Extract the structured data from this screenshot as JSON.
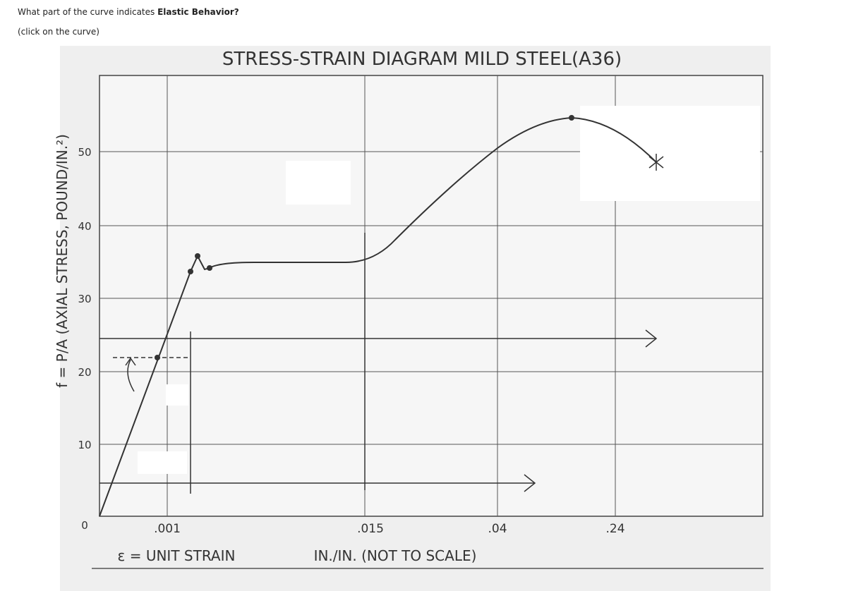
{
  "question": {
    "text": "What part of the curve indicates ",
    "emphasis": "Elastic Behavior?"
  },
  "instruction": "(click on the curve)",
  "diagram": {
    "title": "STRESS-STRAIN DIAGRAM  MILD STEEL(A36)",
    "y_label": "f = P/A (AXIAL STRESS, POUND/IN.²)",
    "y_ticks": [
      "0",
      "10",
      "20",
      "30",
      "40",
      "50"
    ],
    "x_ticks": [
      ".001",
      ".015",
      ".04",
      ".24"
    ],
    "x_label": "ε = UNIT STRAIN",
    "x_units": "IN./IN. (NOT TO SCALE)"
  }
}
